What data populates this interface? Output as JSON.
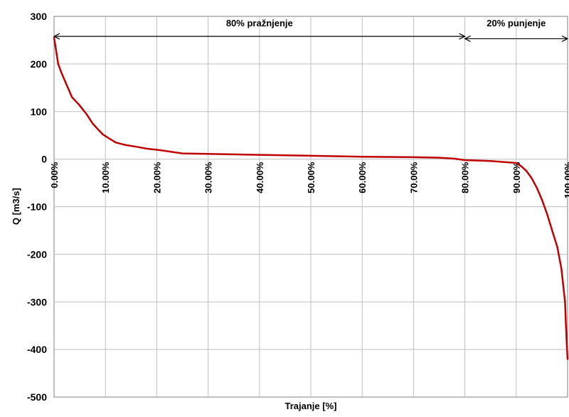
{
  "chart_data": {
    "type": "line",
    "xlabel": "Trajanje [%]",
    "ylabel": "Q [m3/s]",
    "xlim": [
      0,
      100
    ],
    "ylim": [
      -500,
      300
    ],
    "y_ticks": [
      -500,
      -400,
      -300,
      -200,
      -100,
      0,
      100,
      200,
      300
    ],
    "y_tick_labels": [
      "-500",
      "-400",
      "-300",
      "-200",
      "-100",
      "0",
      "100",
      "200",
      "300"
    ],
    "x_ticks": [
      0,
      10,
      20,
      30,
      40,
      50,
      60,
      70,
      80,
      90,
      100
    ],
    "x_tick_labels": [
      "0.00%",
      "10.00%",
      "20.00%",
      "30.00%",
      "40.00%",
      "50.00%",
      "60.00%",
      "70.00%",
      "80.00%",
      "90.00%",
      "100.00%"
    ],
    "grid": true,
    "line_color": "#C00000",
    "series": [
      {
        "x": [
          0,
          0.3,
          0.8,
          1.5,
          2.5,
          3.5,
          4.8,
          6.3,
          7.5,
          8.6,
          9.5,
          10.5,
          12.0,
          13.8,
          16.0,
          18.0,
          20.5,
          25.0,
          30.0,
          40.0,
          50.0,
          60.0,
          70.0,
          75.0,
          78.0,
          80.0,
          85.0,
          90.0,
          91.0,
          92.0,
          93.0,
          94.0,
          95.0,
          96.0,
          97.0,
          98.0,
          98.8,
          99.5,
          99.8,
          100.0
        ],
        "y": [
          255,
          235,
          200,
          180,
          155,
          130,
          115,
          95,
          75,
          62,
          52,
          45,
          35,
          30,
          26,
          22,
          19,
          12,
          11,
          9,
          7,
          5,
          4,
          3,
          1,
          -2,
          -4,
          -8,
          -15,
          -25,
          -40,
          -60,
          -85,
          -115,
          -150,
          -185,
          -230,
          -300,
          -380,
          -420
        ]
      }
    ],
    "annotations": [
      {
        "text": "80% pražnjenje",
        "x_start": 0,
        "x_end": 80,
        "y": 258
      },
      {
        "text": "20% punjenje",
        "x_start": 80,
        "x_end": 100,
        "y": 253
      }
    ]
  }
}
